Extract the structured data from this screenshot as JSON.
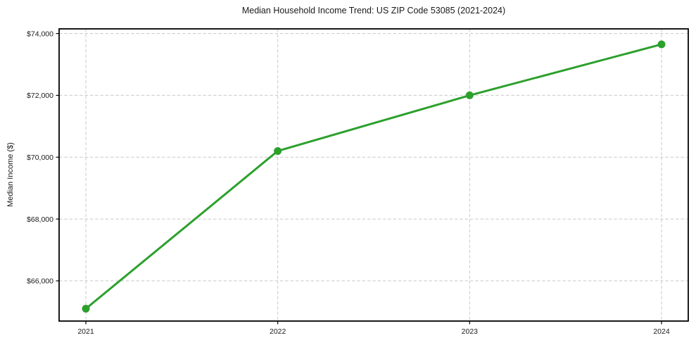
{
  "chart_data": {
    "type": "line",
    "title": "Median Household Income Trend: US ZIP Code 53085 (2021-2024)",
    "xlabel": "",
    "ylabel": "Median Income ($)",
    "categories": [
      "2021",
      "2022",
      "2023",
      "2024"
    ],
    "series": [
      {
        "name": "Median Household Income",
        "values": [
          65100,
          70200,
          72000,
          73650
        ]
      }
    ],
    "ylim": [
      64700,
      74150
    ],
    "yticks": [
      66000,
      68000,
      70000,
      72000,
      74000
    ],
    "ytick_labels": [
      "$66,000",
      "$68,000",
      "$70,000",
      "$72,000",
      "$74,000"
    ],
    "xtick_labels": [
      "2021",
      "2022",
      "2023",
      "2024"
    ],
    "grid": true,
    "legend": "none",
    "line_color": "#2ca02c",
    "marker": "circle",
    "marker_color": "#2ca02c",
    "grid_color": "#c9c9c9",
    "axis_color": "#000000",
    "background_color": "#ffffff"
  }
}
